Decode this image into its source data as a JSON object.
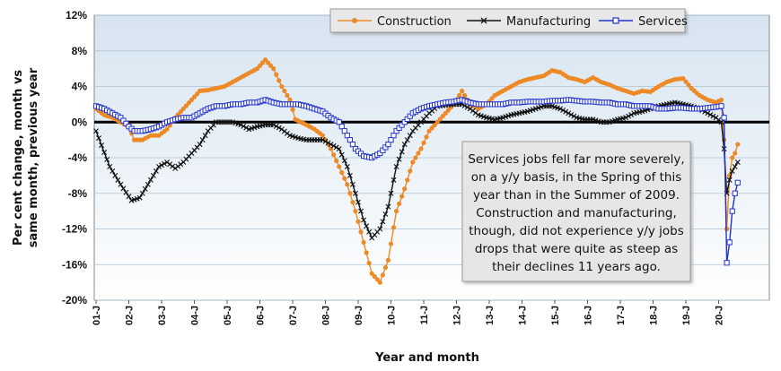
{
  "chart_data": {
    "type": "line",
    "title": "",
    "xlabel": "Year and month",
    "ylabel_lines": [
      "Per cent change, month vs",
      "same month, previous year"
    ],
    "ylim": [
      -20,
      12
    ],
    "y_ticks": [
      "12%",
      "8%",
      "4%",
      "0%",
      "-4%",
      "-8%",
      "-12%",
      "-16%",
      "-20%"
    ],
    "y_tick_values": [
      12,
      8,
      4,
      0,
      -4,
      -8,
      -12,
      -16,
      -20
    ],
    "x_tick_labels": [
      "01-J",
      "02-J",
      "03-J",
      "04-J",
      "05-J",
      "06-J",
      "07-J",
      "08-J",
      "09-J",
      "10-J",
      "11-J",
      "12-J",
      "13-J",
      "14-J",
      "15-J",
      "16-J",
      "17-J",
      "18-J",
      "19-J",
      "20-J"
    ],
    "x_start": "2001-01",
    "legend_position": "top-right",
    "series": [
      {
        "name": "Construction",
        "color": "#ED8A27",
        "marker": "circle",
        "points": [
          [
            "2001-01",
            1.5
          ],
          [
            "2001-04",
            0.8
          ],
          [
            "2001-07",
            0.5
          ],
          [
            "2001-10",
            0.0
          ],
          [
            "2002-01",
            -0.5
          ],
          [
            "2002-03",
            -2.0
          ],
          [
            "2002-06",
            -2.0
          ],
          [
            "2002-09",
            -1.5
          ],
          [
            "2002-12",
            -1.5
          ],
          [
            "2003-03",
            -0.8
          ],
          [
            "2003-06",
            0.5
          ],
          [
            "2003-09",
            1.5
          ],
          [
            "2003-12",
            2.5
          ],
          [
            "2004-03",
            3.5
          ],
          [
            "2004-06",
            3.6
          ],
          [
            "2004-09",
            3.8
          ],
          [
            "2004-12",
            4.0
          ],
          [
            "2005-03",
            4.5
          ],
          [
            "2005-06",
            5.0
          ],
          [
            "2005-09",
            5.5
          ],
          [
            "2005-12",
            6.0
          ],
          [
            "2006-03",
            7.0
          ],
          [
            "2006-06",
            6.0
          ],
          [
            "2006-09",
            4.0
          ],
          [
            "2006-12",
            2.5
          ],
          [
            "2007-02",
            0.3
          ],
          [
            "2007-06",
            -0.3
          ],
          [
            "2007-09",
            -0.8
          ],
          [
            "2007-12",
            -1.5
          ],
          [
            "2008-03",
            -3.0
          ],
          [
            "2008-06",
            -5.0
          ],
          [
            "2008-09",
            -7.0
          ],
          [
            "2008-12",
            -10.0
          ],
          [
            "2009-03",
            -13.5
          ],
          [
            "2009-06",
            -17.0
          ],
          [
            "2009-09",
            -18.0
          ],
          [
            "2009-12",
            -15.5
          ],
          [
            "2010-03",
            -10.0
          ],
          [
            "2010-06",
            -7.5
          ],
          [
            "2010-09",
            -4.5
          ],
          [
            "2010-12",
            -3.0
          ],
          [
            "2011-03",
            -1.0
          ],
          [
            "2011-06",
            0.0
          ],
          [
            "2011-09",
            1.0
          ],
          [
            "2011-12",
            2.0
          ],
          [
            "2012-03",
            3.5
          ],
          [
            "2012-06",
            2.0
          ],
          [
            "2012-09",
            1.5
          ],
          [
            "2012-12",
            2.0
          ],
          [
            "2013-03",
            3.0
          ],
          [
            "2013-06",
            3.5
          ],
          [
            "2013-09",
            4.0
          ],
          [
            "2013-12",
            4.5
          ],
          [
            "2014-03",
            4.8
          ],
          [
            "2014-06",
            5.0
          ],
          [
            "2014-09",
            5.2
          ],
          [
            "2014-12",
            5.8
          ],
          [
            "2015-03",
            5.6
          ],
          [
            "2015-06",
            5.0
          ],
          [
            "2015-09",
            4.8
          ],
          [
            "2015-12",
            4.5
          ],
          [
            "2016-03",
            5.0
          ],
          [
            "2016-06",
            4.5
          ],
          [
            "2016-09",
            4.2
          ],
          [
            "2016-12",
            3.8
          ],
          [
            "2017-03",
            3.5
          ],
          [
            "2017-06",
            3.2
          ],
          [
            "2017-09",
            3.5
          ],
          [
            "2017-12",
            3.4
          ],
          [
            "2018-03",
            4.0
          ],
          [
            "2018-06",
            4.5
          ],
          [
            "2018-09",
            4.8
          ],
          [
            "2018-12",
            4.9
          ],
          [
            "2019-03",
            3.8
          ],
          [
            "2019-06",
            3.0
          ],
          [
            "2019-09",
            2.5
          ],
          [
            "2019-12",
            2.2
          ],
          [
            "2020-02",
            2.5
          ],
          [
            "2020-03",
            -2.0
          ],
          [
            "2020-04",
            -12.0
          ],
          [
            "2020-05",
            -6.0
          ],
          [
            "2020-06",
            -4.0
          ],
          [
            "2020-07",
            -3.5
          ],
          [
            "2020-08",
            -2.5
          ]
        ]
      },
      {
        "name": "Manufacturing",
        "color": "#111111",
        "marker": "x",
        "points": [
          [
            "2001-01",
            -1.0
          ],
          [
            "2001-06",
            -5.0
          ],
          [
            "2001-10",
            -7.0
          ],
          [
            "2002-02",
            -8.8
          ],
          [
            "2002-05",
            -8.5
          ],
          [
            "2002-09",
            -6.5
          ],
          [
            "2002-12",
            -5.0
          ],
          [
            "2003-03",
            -4.5
          ],
          [
            "2003-06",
            -5.2
          ],
          [
            "2003-09",
            -4.5
          ],
          [
            "2003-12",
            -3.5
          ],
          [
            "2004-03",
            -2.5
          ],
          [
            "2004-06",
            -1.0
          ],
          [
            "2004-09",
            0.0
          ],
          [
            "2004-12",
            0.0
          ],
          [
            "2005-03",
            0.0
          ],
          [
            "2005-06",
            -0.3
          ],
          [
            "2005-09",
            -0.8
          ],
          [
            "2005-12",
            -0.5
          ],
          [
            "2006-03",
            -0.3
          ],
          [
            "2006-06",
            -0.3
          ],
          [
            "2006-09",
            -0.8
          ],
          [
            "2006-12",
            -1.5
          ],
          [
            "2007-03",
            -1.8
          ],
          [
            "2007-06",
            -2.0
          ],
          [
            "2007-09",
            -2.0
          ],
          [
            "2007-12",
            -2.0
          ],
          [
            "2008-03",
            -2.5
          ],
          [
            "2008-06",
            -3.0
          ],
          [
            "2008-09",
            -5.0
          ],
          [
            "2008-12",
            -8.0
          ],
          [
            "2009-03",
            -11.0
          ],
          [
            "2009-06",
            -13.0
          ],
          [
            "2009-09",
            -12.0
          ],
          [
            "2009-12",
            -9.5
          ],
          [
            "2010-03",
            -5.0
          ],
          [
            "2010-06",
            -2.5
          ],
          [
            "2010-09",
            -1.0
          ],
          [
            "2010-12",
            0.0
          ],
          [
            "2011-03",
            1.0
          ],
          [
            "2011-06",
            1.8
          ],
          [
            "2011-09",
            1.9
          ],
          [
            "2011-12",
            2.0
          ],
          [
            "2012-03",
            2.0
          ],
          [
            "2012-06",
            1.5
          ],
          [
            "2012-09",
            0.8
          ],
          [
            "2012-12",
            0.5
          ],
          [
            "2013-03",
            0.3
          ],
          [
            "2013-06",
            0.5
          ],
          [
            "2013-09",
            0.8
          ],
          [
            "2013-12",
            1.0
          ],
          [
            "2014-03",
            1.2
          ],
          [
            "2014-06",
            1.5
          ],
          [
            "2014-09",
            1.8
          ],
          [
            "2014-12",
            1.8
          ],
          [
            "2015-03",
            1.5
          ],
          [
            "2015-06",
            1.0
          ],
          [
            "2015-09",
            0.5
          ],
          [
            "2015-12",
            0.3
          ],
          [
            "2016-03",
            0.3
          ],
          [
            "2016-06",
            0.0
          ],
          [
            "2016-09",
            0.0
          ],
          [
            "2016-12",
            0.3
          ],
          [
            "2017-03",
            0.5
          ],
          [
            "2017-06",
            1.0
          ],
          [
            "2017-09",
            1.2
          ],
          [
            "2017-12",
            1.5
          ],
          [
            "2018-03",
            1.8
          ],
          [
            "2018-06",
            2.0
          ],
          [
            "2018-09",
            2.2
          ],
          [
            "2018-12",
            2.0
          ],
          [
            "2019-03",
            1.8
          ],
          [
            "2019-06",
            1.5
          ],
          [
            "2019-09",
            1.0
          ],
          [
            "2019-12",
            0.5
          ],
          [
            "2020-02",
            0.0
          ],
          [
            "2020-03",
            -3.0
          ],
          [
            "2020-04",
            -8.0
          ],
          [
            "2020-05",
            -6.5
          ],
          [
            "2020-06",
            -5.5
          ],
          [
            "2020-07",
            -5.0
          ],
          [
            "2020-08",
            -4.5
          ]
        ]
      },
      {
        "name": "Services",
        "color": "#2233CC",
        "marker": "square",
        "points": [
          [
            "2001-01",
            1.8
          ],
          [
            "2001-04",
            1.5
          ],
          [
            "2001-07",
            1.0
          ],
          [
            "2001-10",
            0.5
          ],
          [
            "2002-01",
            -0.5
          ],
          [
            "2002-03",
            -1.0
          ],
          [
            "2002-06",
            -1.0
          ],
          [
            "2002-09",
            -0.8
          ],
          [
            "2002-12",
            -0.5
          ],
          [
            "2003-03",
            0.0
          ],
          [
            "2003-06",
            0.3
          ],
          [
            "2003-09",
            0.5
          ],
          [
            "2003-12",
            0.5
          ],
          [
            "2004-03",
            1.0
          ],
          [
            "2004-06",
            1.5
          ],
          [
            "2004-09",
            1.8
          ],
          [
            "2004-12",
            1.8
          ],
          [
            "2005-03",
            2.0
          ],
          [
            "2005-06",
            2.0
          ],
          [
            "2005-09",
            2.2
          ],
          [
            "2005-12",
            2.2
          ],
          [
            "2006-03",
            2.5
          ],
          [
            "2006-06",
            2.2
          ],
          [
            "2006-09",
            2.0
          ],
          [
            "2006-12",
            2.0
          ],
          [
            "2007-03",
            2.0
          ],
          [
            "2007-06",
            1.8
          ],
          [
            "2007-09",
            1.5
          ],
          [
            "2007-12",
            1.2
          ],
          [
            "2008-03",
            0.5
          ],
          [
            "2008-06",
            0.0
          ],
          [
            "2008-09",
            -1.5
          ],
          [
            "2008-12",
            -3.0
          ],
          [
            "2009-03",
            -3.8
          ],
          [
            "2009-06",
            -4.0
          ],
          [
            "2009-09",
            -3.5
          ],
          [
            "2009-12",
            -2.5
          ],
          [
            "2010-03",
            -1.0
          ],
          [
            "2010-06",
            0.0
          ],
          [
            "2010-09",
            1.0
          ],
          [
            "2010-12",
            1.5
          ],
          [
            "2011-03",
            1.8
          ],
          [
            "2011-06",
            2.0
          ],
          [
            "2011-09",
            2.2
          ],
          [
            "2011-12",
            2.3
          ],
          [
            "2012-03",
            2.5
          ],
          [
            "2012-06",
            2.2
          ],
          [
            "2012-09",
            2.0
          ],
          [
            "2012-12",
            2.0
          ],
          [
            "2013-03",
            2.0
          ],
          [
            "2013-06",
            2.0
          ],
          [
            "2013-09",
            2.2
          ],
          [
            "2013-12",
            2.2
          ],
          [
            "2014-03",
            2.3
          ],
          [
            "2014-06",
            2.3
          ],
          [
            "2014-09",
            2.3
          ],
          [
            "2014-12",
            2.4
          ],
          [
            "2015-03",
            2.4
          ],
          [
            "2015-06",
            2.5
          ],
          [
            "2015-09",
            2.4
          ],
          [
            "2015-12",
            2.3
          ],
          [
            "2016-03",
            2.3
          ],
          [
            "2016-06",
            2.2
          ],
          [
            "2016-09",
            2.2
          ],
          [
            "2016-12",
            2.0
          ],
          [
            "2017-03",
            2.0
          ],
          [
            "2017-06",
            1.8
          ],
          [
            "2017-09",
            1.8
          ],
          [
            "2017-12",
            1.8
          ],
          [
            "2018-03",
            1.5
          ],
          [
            "2018-06",
            1.5
          ],
          [
            "2018-09",
            1.6
          ],
          [
            "2018-12",
            1.6
          ],
          [
            "2019-03",
            1.5
          ],
          [
            "2019-06",
            1.5
          ],
          [
            "2019-09",
            1.6
          ],
          [
            "2019-12",
            1.7
          ],
          [
            "2020-02",
            1.8
          ],
          [
            "2020-03",
            0.5
          ],
          [
            "2020-04",
            -15.8
          ],
          [
            "2020-05",
            -13.5
          ],
          [
            "2020-06",
            -10.0
          ],
          [
            "2020-07",
            -8.0
          ],
          [
            "2020-08",
            -6.8
          ]
        ]
      }
    ]
  },
  "annotation": {
    "lines": [
      "Services jobs fell far more severely,",
      "on a y/y basis, in the Spring of this",
      "year than in the Summer of 2009.",
      "Construction and manufacturing,",
      "though, did not experience y/y jobs",
      "drops that were quite as steep as",
      "their declines 11 years ago."
    ]
  }
}
